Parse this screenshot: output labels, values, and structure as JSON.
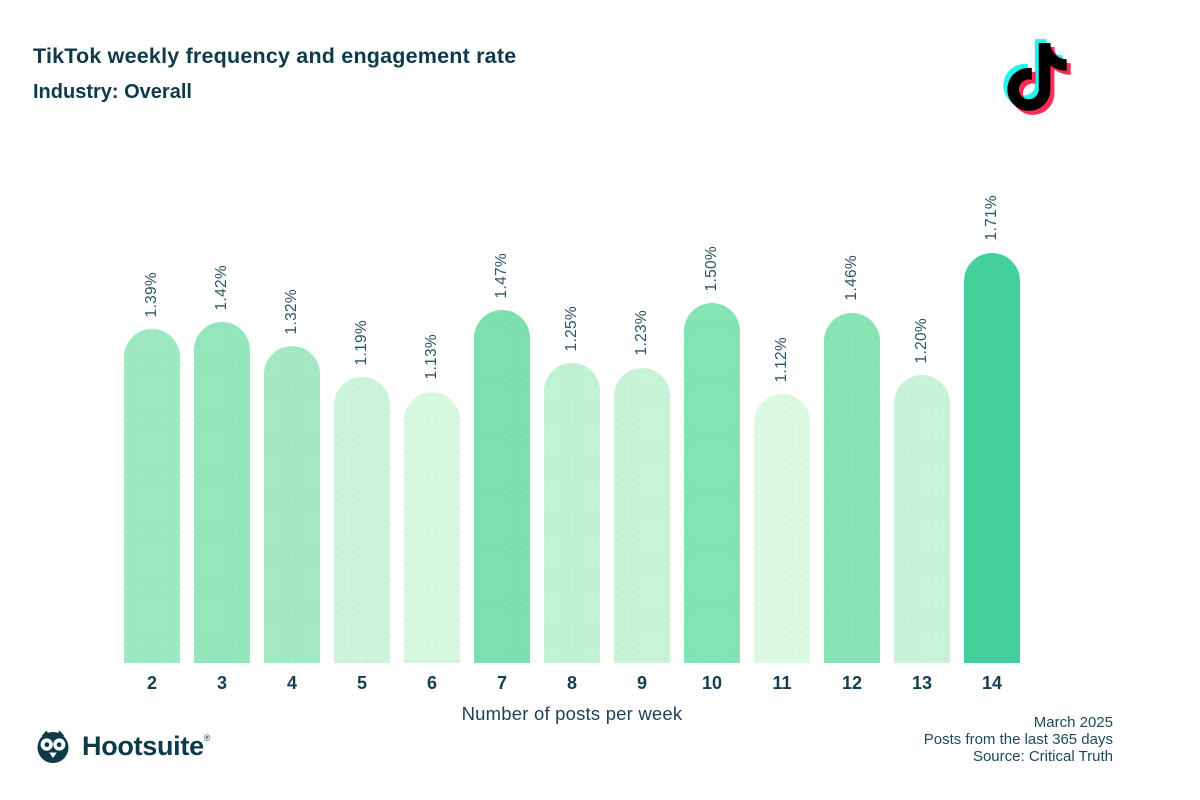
{
  "header": {
    "title": "TikTok weekly frequency and engagement rate",
    "subtitle": "Industry: Overall"
  },
  "chart_data": {
    "type": "bar",
    "title": "TikTok weekly frequency and engagement rate",
    "subtitle": "Industry: Overall",
    "categories": [
      "2",
      "3",
      "4",
      "5",
      "6",
      "7",
      "8",
      "9",
      "10",
      "11",
      "12",
      "13",
      "14"
    ],
    "values": [
      1.39,
      1.42,
      1.32,
      1.19,
      1.13,
      1.47,
      1.25,
      1.23,
      1.5,
      1.12,
      1.46,
      1.2,
      1.71
    ],
    "value_labels": [
      "1.39%",
      "1.42%",
      "1.32%",
      "1.19%",
      "1.13%",
      "1.47%",
      "1.25%",
      "1.23%",
      "1.50%",
      "1.12%",
      "1.46%",
      "1.20%",
      "1.71%"
    ],
    "bar_colors": [
      "#9fe9c0",
      "#93e7ba",
      "#a3eac2",
      "#ccf4da",
      "#d9f8e0",
      "#7ce1af",
      "#c2f2d4",
      "#c7f4d7",
      "#85e4b4",
      "#dcfae2",
      "#86e4b5",
      "#c9f3d8",
      "#42d19a"
    ],
    "xlabel": "Number of posts per week",
    "ylabel": "",
    "ylim": [
      0,
      1.71
    ],
    "grid": false,
    "legend": "none",
    "value_label_rotation": 90,
    "bar_corner": "rounded-top"
  },
  "footer": {
    "brand": "Hootsuite",
    "registered_mark": "®",
    "right_lines": [
      "March 2025",
      "Posts from the last 365 days",
      "Source: Critical Truth"
    ]
  },
  "colors": {
    "heading_text": "#0e3a49",
    "label_text": "#2e5566",
    "tiktok_cyan": "#25f4ee",
    "tiktok_red": "#fe2c55",
    "tiktok_black": "#010101"
  }
}
